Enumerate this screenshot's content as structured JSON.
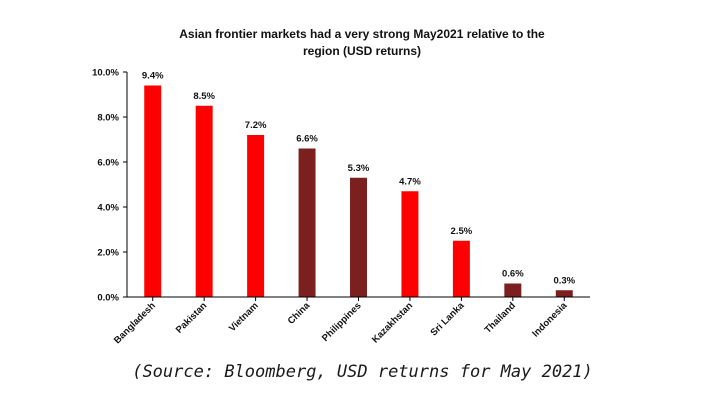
{
  "chart_data": {
    "type": "bar",
    "title": [
      "Asian frontier markets had a very strong May2021 relative to the",
      "region (USD returns)"
    ],
    "categories": [
      "Bangladesh",
      "Pakistan",
      "Vietnam",
      "China",
      "Philippines",
      "Kazakhstan",
      "Sri Lanka",
      "Thailand",
      "Indonesia"
    ],
    "values": [
      9.4,
      8.5,
      7.2,
      6.6,
      5.3,
      4.7,
      2.5,
      0.6,
      0.3
    ],
    "data_labels": [
      "9.4%",
      "8.5%",
      "7.2%",
      "6.6%",
      "5.3%",
      "4.7%",
      "2.5%",
      "0.6%",
      "0.3%"
    ],
    "colors": [
      "#ff0000",
      "#ff0000",
      "#ff0000",
      "#7b1f1f",
      "#7b1f1f",
      "#ff0000",
      "#ff0000",
      "#7b1f1f",
      "#7b1f1f"
    ],
    "ylim": [
      0,
      10
    ],
    "yticks": [
      "0.0%",
      "2.0%",
      "4.0%",
      "6.0%",
      "8.0%",
      "10.0%"
    ],
    "xlabel": "",
    "ylabel": "",
    "grid": false
  },
  "source_note": "(Source: Bloomberg, USD returns for May 2021)"
}
